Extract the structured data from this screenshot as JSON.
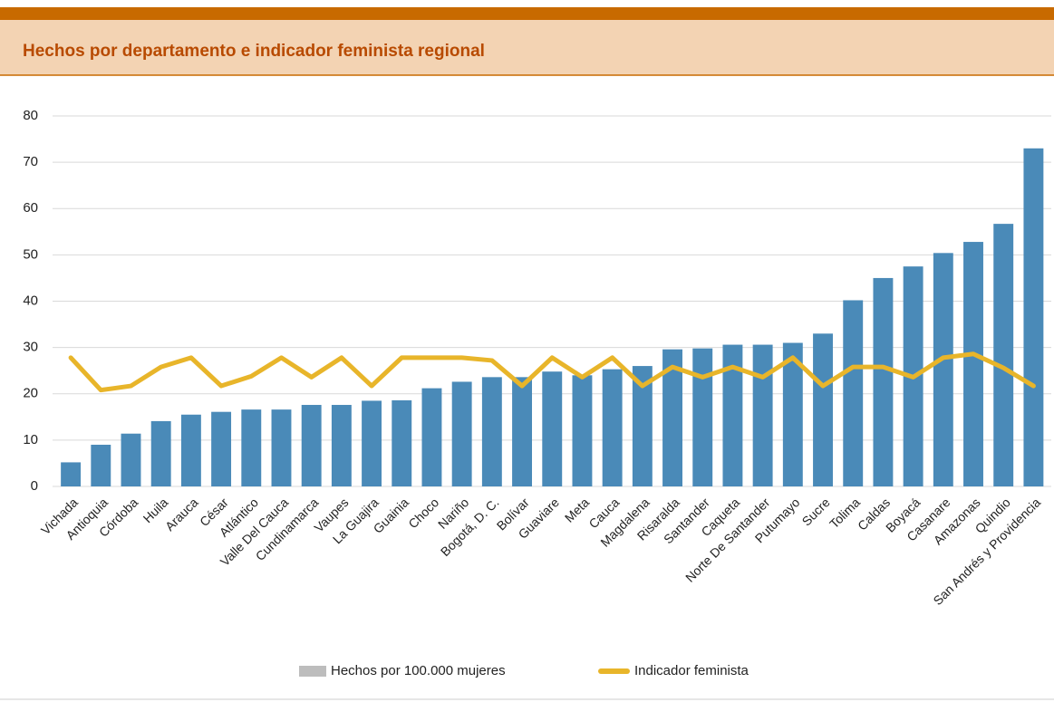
{
  "chart_data": {
    "type": "bar",
    "title": "Hechos por departamento e indicador feminista regional",
    "categories": [
      "Vichada",
      "Antioquia",
      "Córdoba",
      "Huila",
      "Arauca",
      "César",
      "Atlántico",
      "Valle Del Cauca",
      "Cundinamarca",
      "Vaupes",
      "La Guajira",
      "Guainia",
      "Choco",
      "Nariño",
      "Bogotá, D. C.",
      "Bolívar",
      "Guaviare",
      "Meta",
      "Cauca",
      "Magdalena",
      "Risaralda",
      "Santander",
      "Caqueta",
      "Norte De Santander",
      "Putumayo",
      "Sucre",
      "Tolima",
      "Caldas",
      "Boyacá",
      "Casanare",
      "Amazonas",
      "Quindio",
      "San Andrés y Providencia"
    ],
    "series": [
      {
        "name": "Hechos por 100.000 mujeres",
        "type": "bar",
        "color": "#4a8ab8",
        "legend_color": "#bdbdbd",
        "values": [
          5.2,
          9,
          11.4,
          14.1,
          15.5,
          16.1,
          16.6,
          16.6,
          17.6,
          17.6,
          18.5,
          18.6,
          21.2,
          22.6,
          23.6,
          23.6,
          24.8,
          24,
          25.3,
          26,
          29.6,
          29.8,
          30.6,
          30.6,
          31,
          33,
          40.2,
          45,
          47.5,
          50.4,
          52.8,
          56.7,
          73
        ]
      },
      {
        "name": "Indicador feminista",
        "type": "line",
        "color": "#e8b52a",
        "legend_color": "#e8b52a",
        "values": [
          27.8,
          20.8,
          21.7,
          25.8,
          27.8,
          21.7,
          23.8,
          27.8,
          23.6,
          27.8,
          21.7,
          27.8,
          27.8,
          27.8,
          27.2,
          21.7,
          27.8,
          23.6,
          27.8,
          21.7,
          25.8,
          23.6,
          25.8,
          23.6,
          27.8,
          21.7,
          25.8,
          25.8,
          23.6,
          27.8,
          28.6,
          25.6,
          21.7
        ]
      }
    ],
    "ylim": [
      0,
      80
    ],
    "yticks": [
      0,
      10,
      20,
      30,
      40,
      50,
      60,
      70,
      80
    ],
    "grid": true,
    "legend": "bottom"
  }
}
